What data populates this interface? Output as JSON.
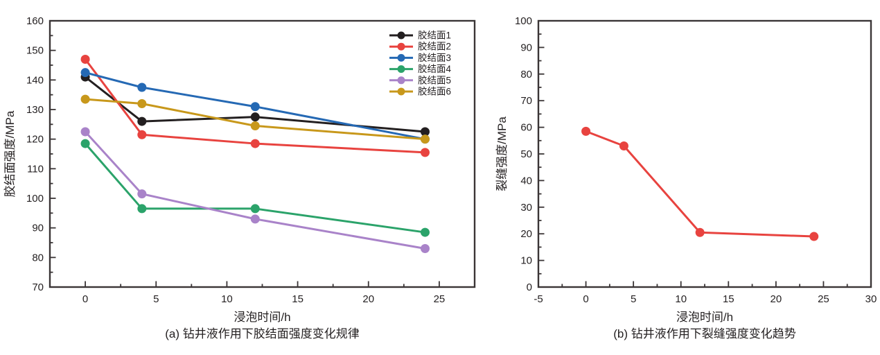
{
  "figure": {
    "background": "#ffffff",
    "axis_color": "#3a3536",
    "text_color": "#231f20"
  },
  "chart_data": [
    {
      "type": "line",
      "caption": "(a) 钻井液作用下胶结面强度变化规律",
      "xlabel": "浸泡时间/h",
      "ylabel": "胶结面强度/MPa",
      "x": [
        0,
        4,
        12,
        24
      ],
      "series": [
        {
          "name": "胶结面1",
          "color": "#231f20",
          "values": [
            141,
            126,
            127.5,
            122.5
          ]
        },
        {
          "name": "胶结面2",
          "color": "#e8433f",
          "values": [
            147,
            121.5,
            118.5,
            115.5
          ]
        },
        {
          "name": "胶结面3",
          "color": "#2569b4",
          "values": [
            142.5,
            137.5,
            131,
            120
          ]
        },
        {
          "name": "胶结面4",
          "color": "#2ba36a",
          "values": [
            118.5,
            96.5,
            96.5,
            88.5
          ]
        },
        {
          "name": "胶结面5",
          "color": "#a983c9",
          "values": [
            122.5,
            101.5,
            93,
            83
          ]
        },
        {
          "name": "胶结面6",
          "color": "#c8981b",
          "values": [
            133.5,
            132,
            124.5,
            120
          ]
        }
      ],
      "xlim": [
        -2.5,
        27.5
      ],
      "ylim": [
        70,
        160
      ],
      "xticks": [
        0,
        5,
        10,
        15,
        20,
        25
      ],
      "yticks": [
        70,
        80,
        90,
        100,
        110,
        120,
        130,
        140,
        150,
        160
      ],
      "x_minor_step": 2.5,
      "y_minor_step": 5,
      "grid": false,
      "legend": {
        "show": true,
        "position": "top-right"
      }
    },
    {
      "type": "line",
      "caption": "(b) 钻井液作用下裂缝强度变化趋势",
      "xlabel": "浸泡时间/h",
      "ylabel": "裂缝强度/MPa",
      "x": [
        0,
        4,
        12,
        24
      ],
      "series": [
        {
          "name": "裂缝强度",
          "color": "#e8433f",
          "values": [
            58.5,
            53,
            20.5,
            19
          ]
        }
      ],
      "xlim": [
        -5,
        30
      ],
      "ylim": [
        0,
        100
      ],
      "xticks": [
        -5,
        0,
        5,
        10,
        15,
        20,
        25,
        30
      ],
      "yticks": [
        0,
        10,
        20,
        30,
        40,
        50,
        60,
        70,
        80,
        90,
        100
      ],
      "x_minor_step": 2.5,
      "y_minor_step": 5,
      "grid": false,
      "legend": {
        "show": false,
        "position": "none"
      }
    }
  ]
}
